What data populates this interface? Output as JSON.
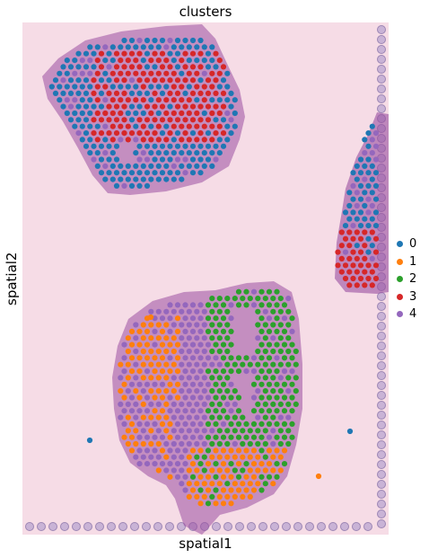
{
  "chart_data": {
    "type": "scatter",
    "title": "clusters",
    "xlabel": "spatial1",
    "ylabel": "spatial2",
    "background_color": "#f6dce6",
    "tissue_color": "#9a4fa0",
    "series": [
      {
        "name": "0",
        "color": "#1f77b4",
        "approx_spot_count": 300
      },
      {
        "name": "1",
        "color": "#ff7f0e",
        "approx_spot_count": 300
      },
      {
        "name": "2",
        "color": "#2ca02c",
        "approx_spot_count": 250
      },
      {
        "name": "3",
        "color": "#d62728",
        "approx_spot_count": 180
      },
      {
        "name": "4",
        "color": "#9467bd",
        "approx_spot_count": 600
      }
    ],
    "legend_position": "right",
    "grid": false
  }
}
